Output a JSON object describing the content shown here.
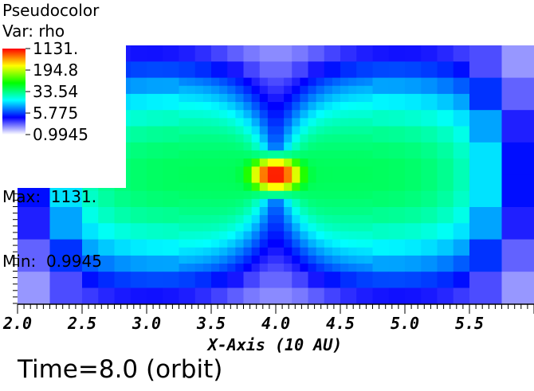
{
  "legend": {
    "title": "Pseudocolor",
    "var_label": "Var: rho",
    "max_label": "Max:  1131.",
    "min_label": "Min:  0.9945",
    "ticks": [
      "1131.",
      "194.8",
      "33.54",
      "5.775",
      "0.9945"
    ]
  },
  "time_label": "Time=8.0 (orbit)",
  "colormap": [
    "#ffffff",
    "#0000ff",
    "#00ffff",
    "#00ff00",
    "#ffff00",
    "#ff0000"
  ],
  "chart_data": {
    "type": "heatmap",
    "title": "Pseudocolor",
    "variable": "rho",
    "scale": "log",
    "colorbar_range": [
      0.9945,
      1131
    ],
    "max": 1131,
    "min": 0.9945,
    "xlabel": "X-Axis (10 AU)",
    "xlim": [
      2.0,
      6.0
    ],
    "x_ticks": [
      "2.0",
      "2.5",
      "3.0",
      "3.5",
      "4.0",
      "4.5",
      "5.0",
      "5.5"
    ],
    "peak_location_x": 4.0,
    "description_values": {
      "background_low": 1.5,
      "disk_mid": 40,
      "center_peak": 1131
    }
  }
}
